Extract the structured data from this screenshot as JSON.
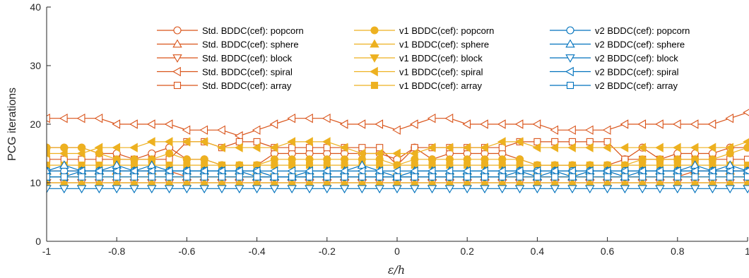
{
  "chart_data": {
    "type": "line",
    "xlabel": "ε/h",
    "ylabel": "PCG iterations",
    "xlim": [
      -1,
      1
    ],
    "ylim": [
      0,
      40
    ],
    "xticks": [
      "-1",
      "-0.8",
      "-0.6",
      "-0.4",
      "-0.2",
      "0",
      "0.2",
      "0.4",
      "0.6",
      "0.8",
      "1"
    ],
    "yticks": [
      "0",
      "10",
      "20",
      "30",
      "40"
    ],
    "legend_position": "top-right",
    "legend_columns": 3,
    "grid": false,
    "x": [
      -1.0,
      -0.95,
      -0.9,
      -0.85,
      -0.8,
      -0.75,
      -0.7,
      -0.65,
      -0.6,
      -0.55,
      -0.5,
      -0.45,
      -0.4,
      -0.35,
      -0.3,
      -0.25,
      -0.2,
      -0.15,
      -0.1,
      -0.05,
      0.0,
      0.05,
      0.1,
      0.15,
      0.2,
      0.25,
      0.3,
      0.35,
      0.4,
      0.45,
      0.5,
      0.55,
      0.6,
      0.65,
      0.7,
      0.75,
      0.8,
      0.85,
      0.9,
      0.95,
      1.0
    ],
    "series": [
      {
        "name": "Std. BDDC(cef): popcorn",
        "group": "std",
        "marker": "circle",
        "color": "#D95319",
        "values": [
          16,
          16,
          16,
          15,
          15,
          14,
          15,
          16,
          14,
          14,
          13,
          13,
          13,
          15,
          15,
          15,
          15,
          15,
          15,
          15,
          14,
          16,
          14,
          15,
          15,
          15,
          15,
          14,
          13,
          13,
          13,
          13,
          13,
          14,
          16,
          14,
          15,
          15,
          15,
          16,
          16
        ]
      },
      {
        "name": "Std. BDDC(cef): sphere",
        "group": "std",
        "marker": "triangle-up",
        "color": "#D95319",
        "values": [
          12,
          12,
          12,
          12,
          12,
          12,
          12,
          12,
          11,
          11,
          11,
          11,
          11,
          11,
          11,
          11,
          11,
          11,
          11,
          11,
          11,
          11,
          11,
          11,
          11,
          11,
          11,
          11,
          11,
          11,
          11,
          11,
          11,
          11,
          11,
          11,
          11,
          12,
          12,
          12,
          12
        ]
      },
      {
        "name": "Std. BDDC(cef): block",
        "group": "std",
        "marker": "triangle-down",
        "color": "#D95319",
        "values": [
          10,
          10,
          10,
          10,
          10,
          10,
          10,
          10,
          10,
          10,
          10,
          10,
          10,
          10,
          10,
          10,
          10,
          10,
          10,
          10,
          10,
          10,
          10,
          10,
          10,
          10,
          10,
          10,
          10,
          10,
          10,
          10,
          10,
          10,
          10,
          10,
          10,
          10,
          10,
          10,
          10
        ]
      },
      {
        "name": "Std. BDDC(cef): spiral",
        "group": "std",
        "marker": "triangle-left",
        "color": "#D95319",
        "values": [
          21,
          21,
          21,
          21,
          20,
          20,
          20,
          20,
          19,
          19,
          19,
          18,
          19,
          20,
          21,
          21,
          21,
          20,
          20,
          20,
          19,
          20,
          21,
          21,
          20,
          20,
          20,
          20,
          20,
          19,
          19,
          19,
          19,
          20,
          20,
          20,
          20,
          20,
          20,
          21,
          22
        ]
      },
      {
        "name": "Std. BDDC(cef): array",
        "group": "std",
        "marker": "square",
        "color": "#D95319",
        "values": [
          14,
          14,
          14,
          14,
          14,
          14,
          14,
          14,
          17,
          17,
          16,
          17,
          17,
          16,
          16,
          16,
          16,
          16,
          16,
          16,
          13,
          16,
          16,
          16,
          16,
          16,
          16,
          17,
          17,
          17,
          17,
          17,
          17,
          14,
          14,
          14,
          14,
          14,
          14,
          14,
          14
        ]
      },
      {
        "name": "v1 BDDC(cef): popcorn",
        "group": "v1",
        "marker": "circle",
        "color": "#EDB120",
        "values": [
          16,
          16,
          16,
          15,
          14,
          14,
          14,
          15,
          14,
          14,
          13,
          13,
          13,
          14,
          14,
          14,
          14,
          14,
          14,
          14,
          13,
          14,
          14,
          14,
          14,
          14,
          14,
          14,
          13,
          13,
          13,
          13,
          13,
          13,
          14,
          14,
          14,
          14,
          14,
          15,
          16
        ]
      },
      {
        "name": "v1 BDDC(cef): sphere",
        "group": "v1",
        "marker": "triangle-up",
        "color": "#EDB120",
        "values": [
          10,
          10,
          10,
          10,
          10,
          10,
          10,
          10,
          10,
          10,
          10,
          10,
          10,
          10,
          10,
          10,
          10,
          10,
          10,
          10,
          10,
          10,
          10,
          10,
          10,
          10,
          10,
          10,
          10,
          10,
          10,
          10,
          10,
          10,
          10,
          10,
          10,
          10,
          10,
          10,
          10
        ]
      },
      {
        "name": "v1 BDDC(cef): block",
        "group": "v1",
        "marker": "triangle-down",
        "color": "#EDB120",
        "values": [
          11,
          11,
          11,
          11,
          11,
          11,
          11,
          11,
          11,
          11,
          11,
          11,
          11,
          11,
          11,
          11,
          11,
          11,
          11,
          11,
          11,
          11,
          11,
          11,
          11,
          11,
          11,
          11,
          11,
          11,
          11,
          11,
          11,
          11,
          11,
          11,
          11,
          11,
          11,
          11,
          11
        ]
      },
      {
        "name": "v1 BDDC(cef): spiral",
        "group": "v1",
        "marker": "triangle-left",
        "color": "#EDB120",
        "values": [
          15,
          15,
          15,
          16,
          16,
          16,
          17,
          17,
          17,
          17,
          16,
          16,
          16,
          16,
          17,
          17,
          17,
          16,
          15,
          15,
          15,
          15,
          16,
          16,
          16,
          16,
          17,
          17,
          16,
          16,
          16,
          16,
          16,
          16,
          16,
          16,
          16,
          16,
          16,
          16,
          17
        ]
      },
      {
        "name": "v1 BDDC(cef): array",
        "group": "v1",
        "marker": "square",
        "color": "#EDB120",
        "values": [
          13,
          13,
          13,
          13,
          13,
          13,
          13,
          13,
          13,
          13,
          13,
          13,
          13,
          13,
          13,
          13,
          13,
          13,
          13,
          13,
          13,
          13,
          13,
          13,
          13,
          13,
          13,
          13,
          13,
          13,
          13,
          13,
          13,
          13,
          13,
          13,
          13,
          13,
          13,
          13,
          13
        ]
      },
      {
        "name": "v2 BDDC(cef): popcorn",
        "group": "v2",
        "marker": "circle",
        "color": "#0072BD",
        "values": [
          12,
          12,
          12,
          12,
          12,
          12,
          12,
          12,
          12,
          12,
          12,
          12,
          12,
          11,
          11,
          11,
          11,
          11,
          11,
          11,
          11,
          11,
          11,
          11,
          11,
          11,
          11,
          12,
          12,
          12,
          12,
          12,
          12,
          12,
          12,
          12,
          12,
          12,
          12,
          12,
          12
        ]
      },
      {
        "name": "v2 BDDC(cef): sphere",
        "group": "v2",
        "marker": "triangle-up",
        "color": "#0072BD",
        "values": [
          12,
          13,
          12,
          12,
          13,
          12,
          13,
          12,
          12,
          12,
          12,
          12,
          11,
          11,
          11,
          12,
          12,
          12,
          13,
          12,
          11,
          12,
          12,
          12,
          12,
          12,
          12,
          12,
          11,
          12,
          11,
          12,
          12,
          11,
          12,
          12,
          12,
          13,
          12,
          13,
          12
        ]
      },
      {
        "name": "v2 BDDC(cef): block",
        "group": "v2",
        "marker": "triangle-down",
        "color": "#0072BD",
        "values": [
          9,
          9,
          9,
          9,
          9,
          9,
          9,
          9,
          9,
          9,
          9,
          9,
          9,
          9,
          9,
          9,
          9,
          9,
          9,
          9,
          9,
          9,
          9,
          9,
          9,
          9,
          9,
          9,
          9,
          9,
          9,
          9,
          9,
          9,
          9,
          9,
          9,
          9,
          9,
          9,
          9
        ]
      },
      {
        "name": "v2 BDDC(cef): spiral",
        "group": "v2",
        "marker": "triangle-left",
        "color": "#0072BD",
        "values": [
          11,
          11,
          12,
          12,
          12,
          12,
          12,
          12,
          12,
          12,
          12,
          12,
          12,
          12,
          12,
          12,
          12,
          12,
          12,
          12,
          12,
          12,
          12,
          12,
          12,
          12,
          12,
          12,
          12,
          12,
          12,
          12,
          12,
          12,
          12,
          12,
          12,
          12,
          12,
          12,
          12
        ]
      },
      {
        "name": "v2 BDDC(cef): array",
        "group": "v2",
        "marker": "square",
        "color": "#0072BD",
        "values": [
          11,
          11,
          11,
          11,
          11,
          11,
          11,
          11,
          11,
          11,
          11,
          11,
          11,
          11,
          11,
          11,
          11,
          11,
          11,
          11,
          11,
          11,
          11,
          11,
          11,
          11,
          11,
          11,
          11,
          11,
          11,
          11,
          11,
          11,
          11,
          11,
          11,
          11,
          11,
          11,
          11
        ]
      }
    ]
  }
}
